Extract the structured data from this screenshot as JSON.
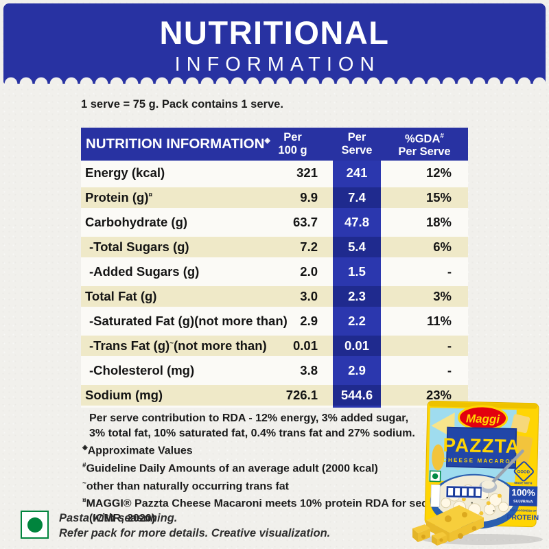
{
  "banner": {
    "title": "NUTRITIONAL",
    "subtitle": "INFORMATION"
  },
  "serving_note": "1 serve = 75 g. Pack contains 1 serve.",
  "table": {
    "header": {
      "title": "NUTRITION INFORMATION",
      "title_mark": "◈",
      "per100_line1": "Per",
      "per100_line2": "100 g",
      "serve_line1": "Per",
      "serve_line2": "Serve",
      "gda_line1": "%GDA",
      "gda_mark": "#",
      "gda_line2": "Per Serve"
    },
    "rows": [
      {
        "label": "Energy (kcal)",
        "sup": "",
        "label2": "",
        "per100": "321",
        "serve": "241",
        "gda": "12%",
        "shade": "white",
        "indent": false
      },
      {
        "label": "Protein (g)",
        "sup": "¤",
        "label2": "",
        "per100": "9.9",
        "serve": "7.4",
        "gda": "15%",
        "shade": "beige",
        "indent": false
      },
      {
        "label": "Carbohydrate (g)",
        "sup": "",
        "label2": "",
        "per100": "63.7",
        "serve": "47.8",
        "gda": "18%",
        "shade": "white",
        "indent": false
      },
      {
        "label": "-Total Sugars (g)",
        "sup": "",
        "label2": "",
        "per100": "7.2",
        "serve": "5.4",
        "gda": "6%",
        "shade": "beige",
        "indent": true
      },
      {
        "label": "-Added Sugars (g)",
        "sup": "",
        "label2": "",
        "per100": "2.0",
        "serve": "1.5",
        "gda": "-",
        "shade": "white",
        "indent": true
      },
      {
        "label": "Total Fat (g)",
        "sup": "",
        "label2": "",
        "per100": "3.0",
        "serve": "2.3",
        "gda": "3%",
        "shade": "beige",
        "indent": false
      },
      {
        "label": "-Saturated Fat (g)(not more than)",
        "sup": "",
        "label2": "",
        "per100": "2.9",
        "serve": "2.2",
        "gda": "11%",
        "shade": "white",
        "indent": true
      },
      {
        "label": "-Trans Fat (g)",
        "sup": "~",
        "label2": " (not more than)",
        "per100": "0.01",
        "serve": "0.01",
        "gda": "-",
        "shade": "beige",
        "indent": true
      },
      {
        "label": "-Cholesterol (mg)",
        "sup": "",
        "label2": "",
        "per100": "3.8",
        "serve": "2.9",
        "gda": "-",
        "shade": "white",
        "indent": true
      },
      {
        "label": "Sodium (mg)",
        "sup": "",
        "label2": "",
        "per100": "726.1",
        "serve": "544.6",
        "gda": "23%",
        "shade": "beige",
        "indent": false
      }
    ]
  },
  "footnotes": [
    {
      "mark": "",
      "indent": true,
      "text": "Per serve contribution to RDA - 12% energy, 3% added sugar,"
    },
    {
      "mark": "",
      "indent": true,
      "text": "3% total fat, 10% saturated fat, 0.4% trans fat and 27% sodium."
    },
    {
      "mark": "◈",
      "indent": false,
      "text": "Approximate Values"
    },
    {
      "mark": "#",
      "indent": false,
      "text": "Guideline Daily Amounts of an average adult (2000 kcal)"
    },
    {
      "mark": "~",
      "indent": false,
      "text": "other than naturally occurring trans fat"
    },
    {
      "mark": "¤",
      "indent": false,
      "text": "MAGGI® Pazzta Cheese Macaroni meets 10% protein RDA for sedentary adults"
    },
    {
      "mark": "",
      "indent": true,
      "text": "(ICMR, 2020)"
    }
  ],
  "veg_note": {
    "line1": "Pasta with seasoning.",
    "line2": "Refer pack for more details. Creative visualization."
  },
  "pack": {
    "brand": "Maggi",
    "name": "PAZZTA",
    "variant": "CHEESE MACARONI",
    "badge": "GOOD",
    "made_with": "MADE WITH",
    "percent": "100%",
    "ingredient": "SUJI/RAVA",
    "goodness": "AND GOODNESS OF",
    "protein": "PROTEIN"
  },
  "colors": {
    "banner_blue": "#2832A2",
    "serve_band_bright": "#2B37AE",
    "serve_band_dark": "#1F2A8E",
    "row_beige": "#EFE9C8",
    "row_white": "#FBFAF6",
    "paper": "#F1F0EC",
    "veg_green": "#00843D",
    "pack_yellow": "#FFD504",
    "maggi_red": "#E3000F",
    "pack_blue": "#2146A8"
  }
}
